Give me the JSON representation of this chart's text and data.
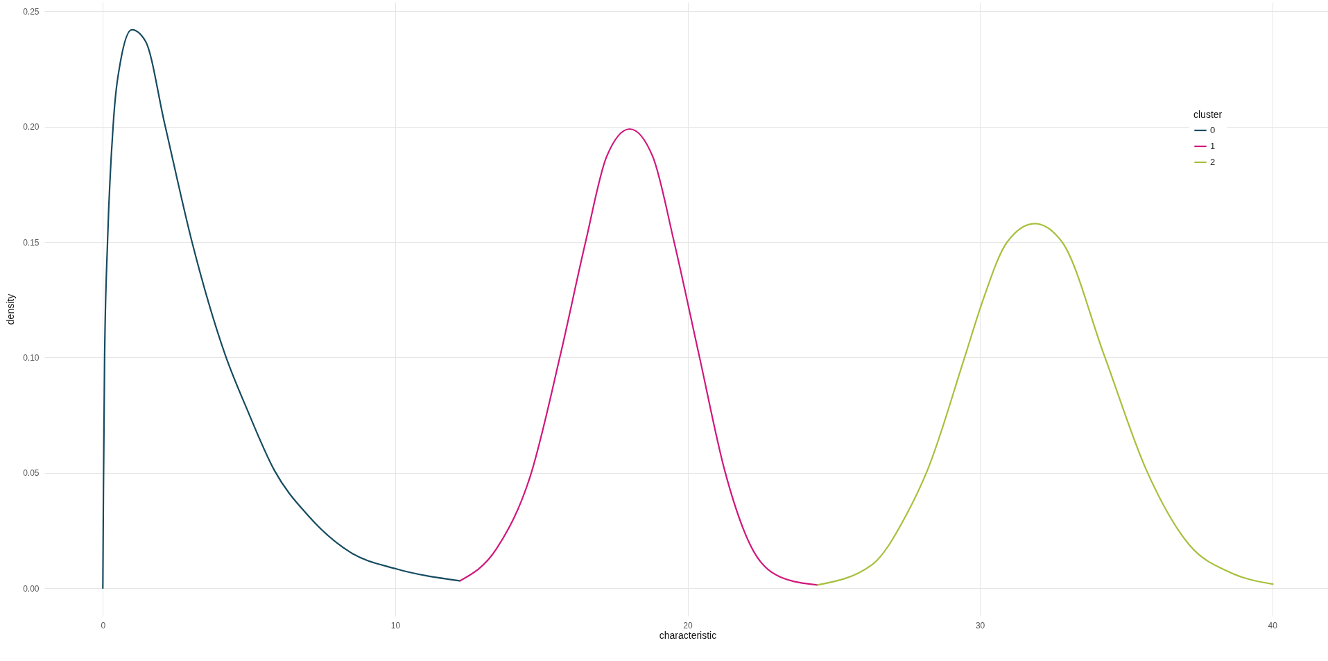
{
  "chart_data": {
    "type": "line",
    "xlabel": "characteristic",
    "ylabel": "density",
    "legend_title": "cluster",
    "legend": "top right",
    "grid": true,
    "line_style": "solid",
    "marker": "none",
    "xlim": [
      -2,
      42
    ],
    "ylim": [
      -0.012,
      0.254
    ],
    "xticks": [
      0,
      10,
      20,
      30,
      40
    ],
    "yticks": [
      {
        "value": 0,
        "label": "0.00"
      },
      {
        "value": 0.05,
        "label": "0.05"
      },
      {
        "value": 0.1,
        "label": "0.10"
      },
      {
        "value": 0.15,
        "label": "0.15"
      },
      {
        "value": 0.2,
        "label": "0.20"
      },
      {
        "value": 0.25,
        "label": "0.25"
      }
    ],
    "series": [
      {
        "name": "0",
        "color": "#164b60",
        "x": [
          0,
          0.02,
          0.06,
          0.16,
          0.35,
          0.6,
          0.99,
          1.46,
          2.11,
          3.05,
          4.2,
          4.93,
          5.87,
          7.02,
          8.46,
          10.0,
          12.21
        ],
        "values": [
          0,
          0.042,
          0.1,
          0.15,
          0.2,
          0.228,
          0.242,
          0.237,
          0.2015,
          0.15,
          0.1006,
          0.0776,
          0.051,
          0.0315,
          0.0156,
          0.0085,
          0.0032
        ]
      },
      {
        "name": "1",
        "color": "#d0177c",
        "x": [
          12.21,
          13.48,
          14.63,
          15.64,
          16.51,
          17.23,
          18.02,
          18.81,
          19.54,
          20.4,
          21.27,
          22.13,
          23.15,
          24.44
        ],
        "values": [
          0.0032,
          0.0174,
          0.049,
          0.1006,
          0.15,
          0.187,
          0.199,
          0.187,
          0.15,
          0.1006,
          0.051,
          0.0191,
          0.005,
          0.0014
        ]
      },
      {
        "name": "2",
        "color": "#a6c03c",
        "x": [
          24.44,
          26.32,
          27.47,
          28.2,
          29.49,
          30.07,
          30.93,
          31.87,
          32.81,
          34.26,
          35.7,
          37.14,
          38.58,
          40.02
        ],
        "values": [
          0.0014,
          0.0103,
          0.0315,
          0.051,
          0.1006,
          0.1236,
          0.15,
          0.158,
          0.15,
          0.1006,
          0.051,
          0.0191,
          0.0067,
          0.0018
        ]
      }
    ]
  }
}
